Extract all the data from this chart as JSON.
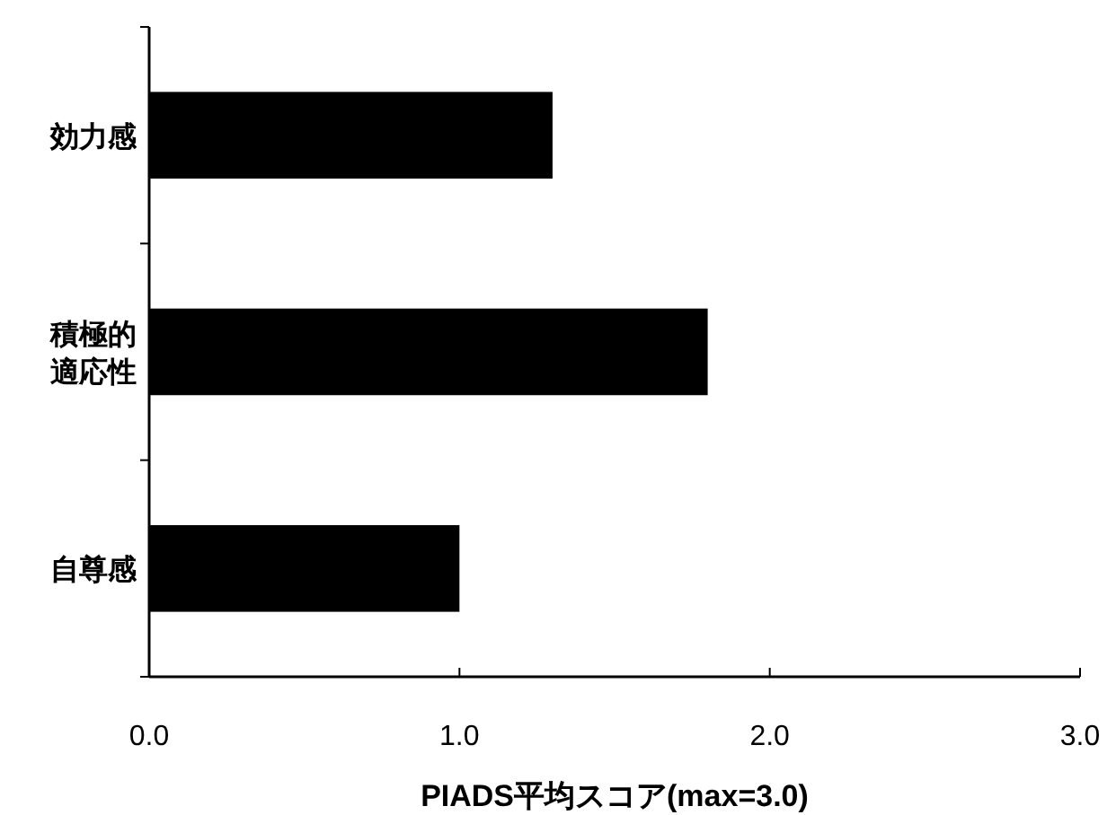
{
  "chart_data": {
    "type": "bar",
    "orientation": "horizontal",
    "xlabel": "PIADS平均スコア(max=3.0)",
    "categories": [
      "効力感",
      "積極的適応性",
      "自尊感"
    ],
    "values": [
      1.3,
      1.8,
      1.0
    ],
    "color": "#000000",
    "xlim": [
      0,
      3
    ],
    "xticks": [
      {
        "value": 0,
        "label": "0.0"
      },
      {
        "value": 1,
        "label": "1.0"
      },
      {
        "value": 2,
        "label": "2.0"
      },
      {
        "value": 3,
        "label": "3.0"
      }
    ],
    "grid": false
  }
}
